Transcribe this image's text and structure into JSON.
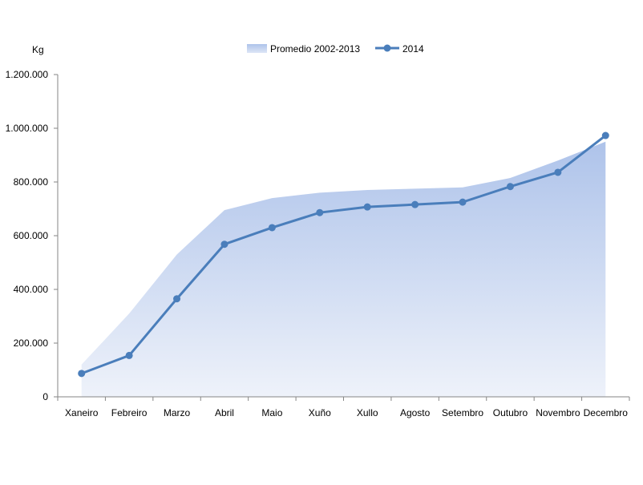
{
  "chart_data": {
    "type": "area",
    "y_unit_label": "Kg",
    "categories": [
      "Xaneiro",
      "Febreiro",
      "Marzo",
      "Abril",
      "Maio",
      "Xuño",
      "Xullo",
      "Agosto",
      "Setembro",
      "Outubro",
      "Novembro",
      "Decembro"
    ],
    "ylim": [
      0,
      1200000
    ],
    "yticks": [
      0,
      200000,
      400000,
      600000,
      800000,
      1000000,
      1200000
    ],
    "ytick_labels": [
      "0",
      "200.000",
      "400.000",
      "600.000",
      "800.000",
      "1.000.000",
      "1.200.000"
    ],
    "grid": false,
    "legend_position": "top-center",
    "series": [
      {
        "name": "Promedio 2002-2013",
        "type": "area",
        "color": "#b4c7e7",
        "values": [
          120000,
          310000,
          530000,
          695000,
          740000,
          760000,
          770000,
          775000,
          780000,
          815000,
          880000,
          950000
        ]
      },
      {
        "name": "2014",
        "type": "line",
        "color": "#4a7ebb",
        "values": [
          87000,
          154000,
          365000,
          568000,
          630000,
          686000,
          707000,
          716000,
          725000,
          783000,
          836000,
          973000
        ]
      }
    ]
  }
}
